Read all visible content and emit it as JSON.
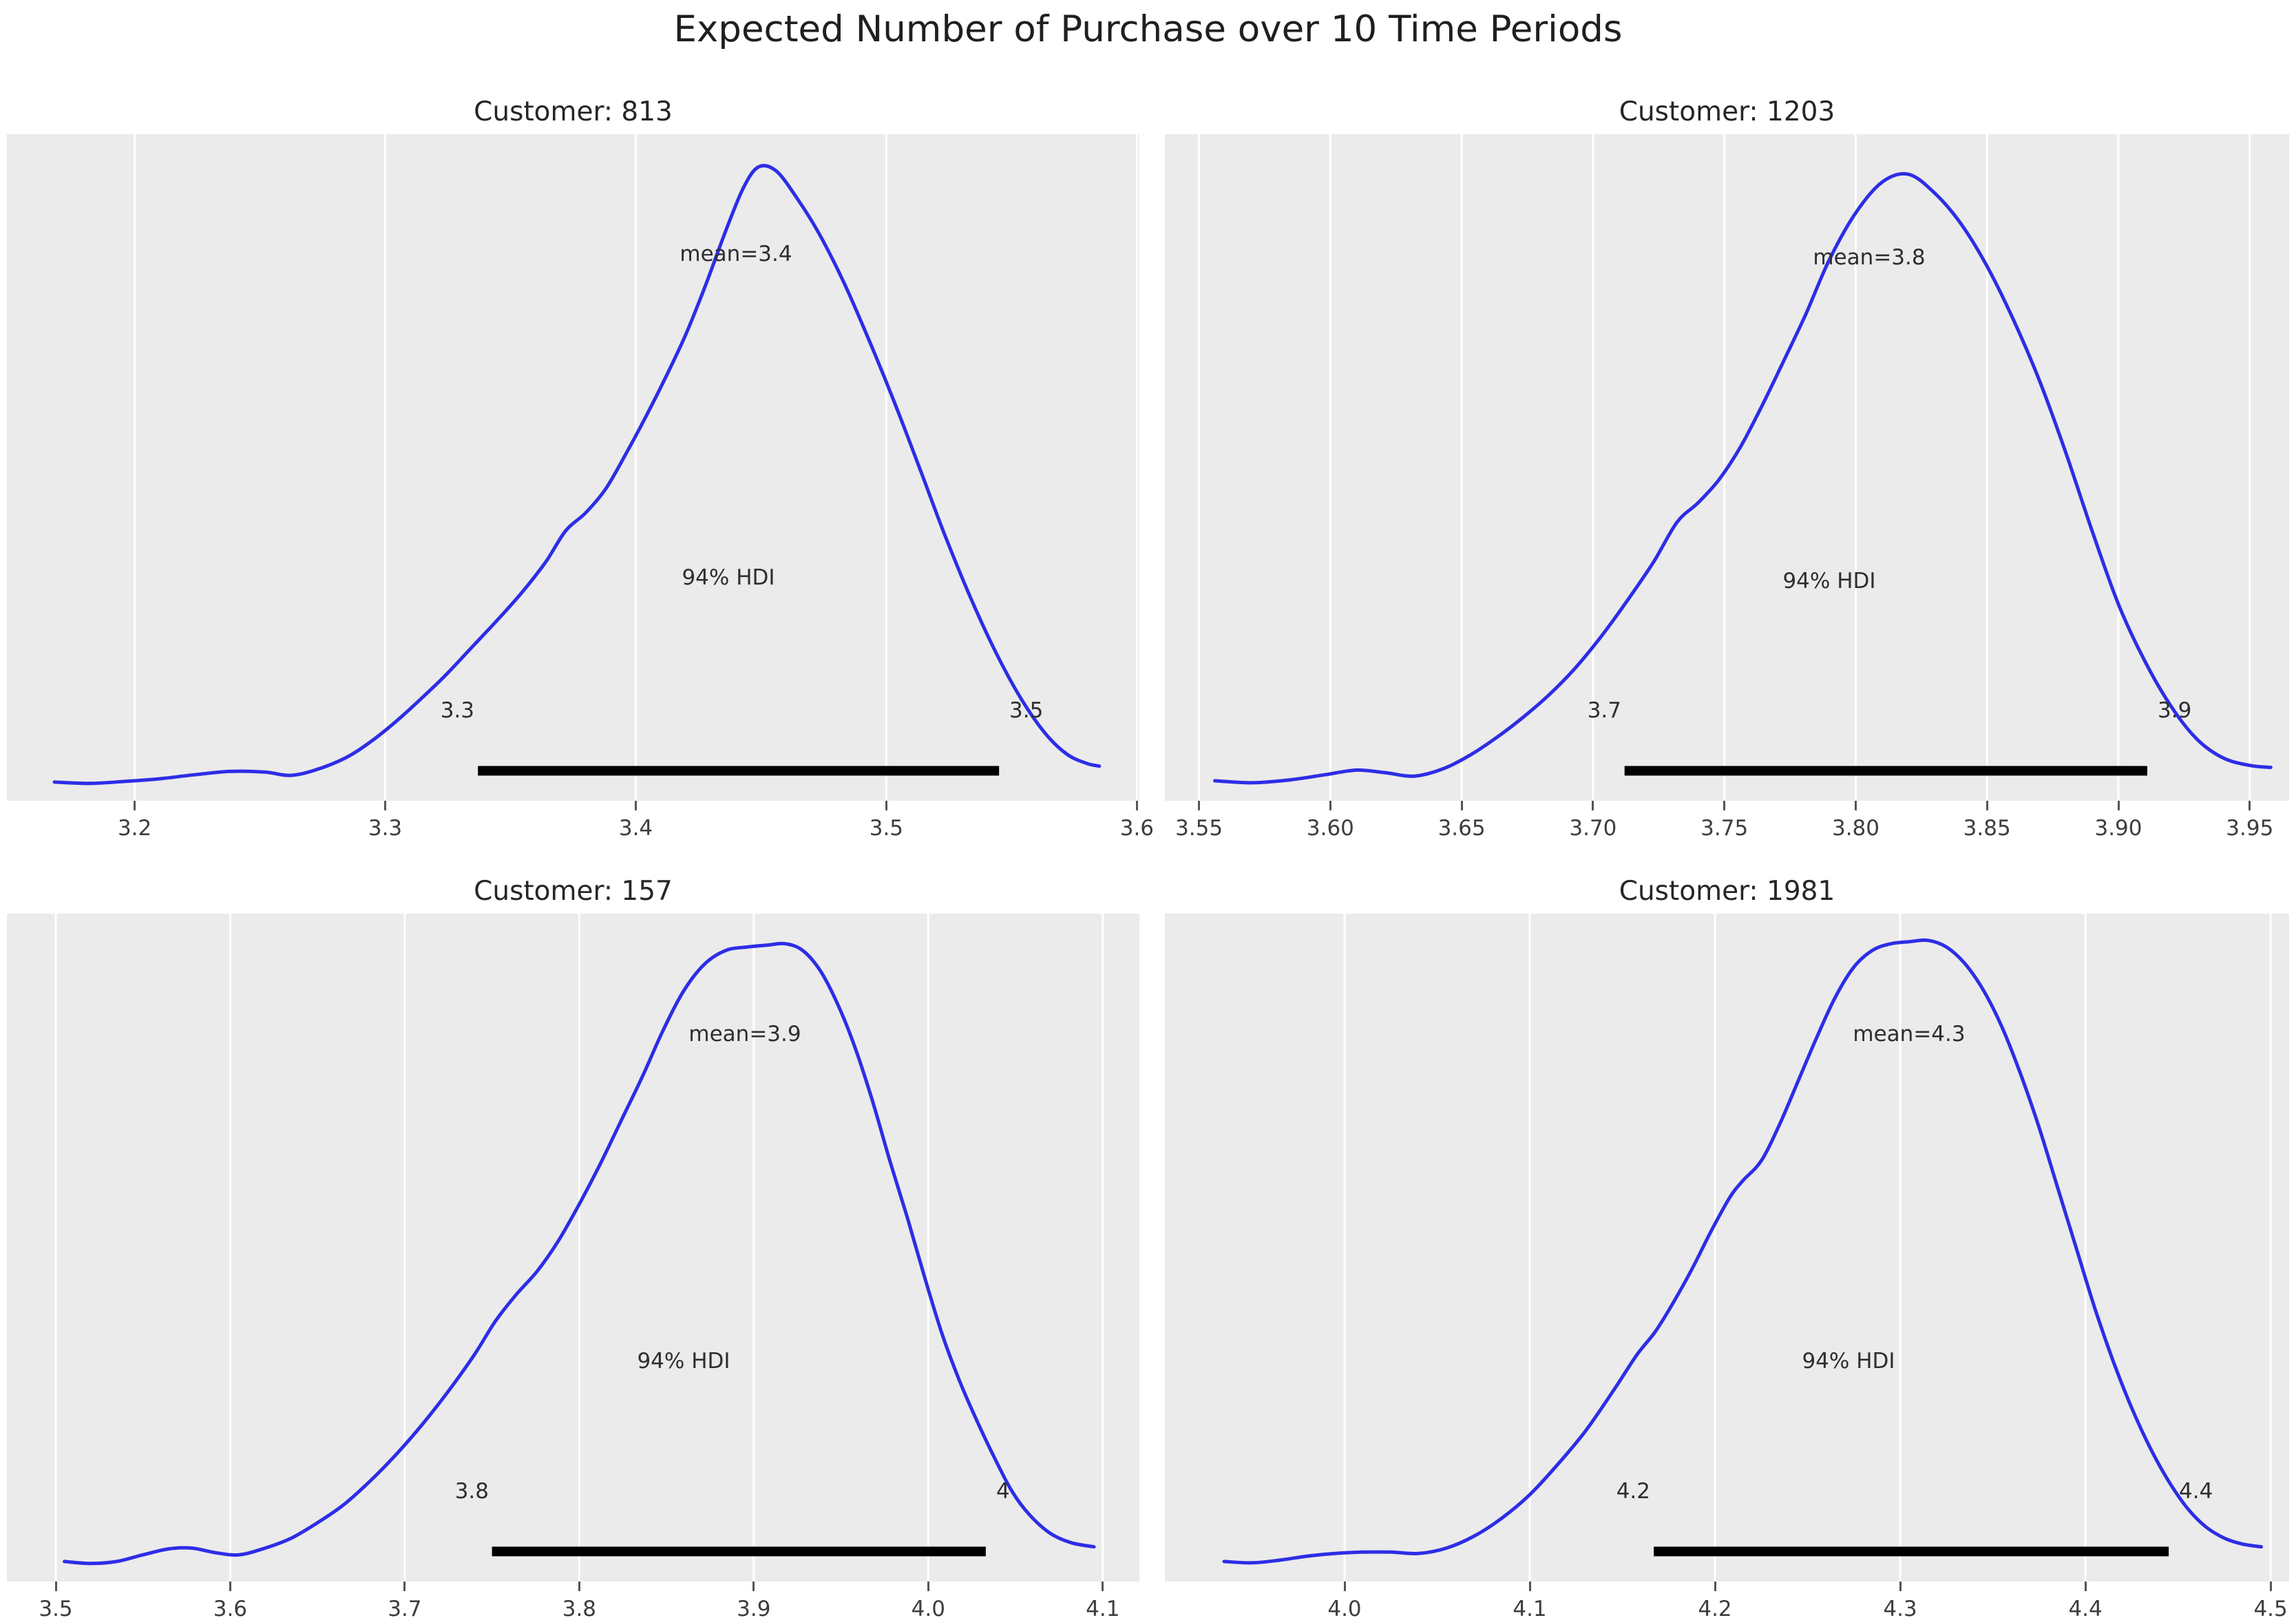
{
  "figure": {
    "title": "Expected Number of Purchase over 10 Time Periods"
  },
  "style": {
    "panel_bg": "#ebebeb",
    "grid_color": "#ffffff",
    "curve_color": "#2d2de6",
    "hdi_line_color": "#000000",
    "title_color": "#262626",
    "tick_color": "#3d3d3d"
  },
  "chart_data": [
    {
      "type": "kde",
      "title": "Customer: 813",
      "mean": 3.4,
      "mean_label": "mean=3.4",
      "hdi_text": "94% HDI",
      "hdi_interval": [
        3.337,
        3.545
      ],
      "hdi_labels": [
        "3.3",
        "3.5"
      ],
      "xlim": [
        3.149,
        3.601
      ],
      "ticks": [
        3.2,
        3.3,
        3.4,
        3.5,
        3.6
      ],
      "tick_labels": [
        "3.2",
        "3.3",
        "3.4",
        "3.5",
        "3.6"
      ],
      "mean_label_pos": [
        3.44,
        0.82
      ],
      "hdi_text_pos": [
        3.437,
        0.335
      ],
      "hdi_label_y": 0.135,
      "hdi_line_y": 0.045,
      "curve": [
        [
          3.168,
          0.028
        ],
        [
          3.182,
          0.026
        ],
        [
          3.196,
          0.029
        ],
        [
          3.21,
          0.033
        ],
        [
          3.224,
          0.039
        ],
        [
          3.238,
          0.044
        ],
        [
          3.252,
          0.043
        ],
        [
          3.262,
          0.038
        ],
        [
          3.272,
          0.046
        ],
        [
          3.284,
          0.064
        ],
        [
          3.294,
          0.088
        ],
        [
          3.304,
          0.118
        ],
        [
          3.314,
          0.152
        ],
        [
          3.324,
          0.188
        ],
        [
          3.334,
          0.228
        ],
        [
          3.344,
          0.268
        ],
        [
          3.354,
          0.31
        ],
        [
          3.364,
          0.358
        ],
        [
          3.372,
          0.405
        ],
        [
          3.38,
          0.432
        ],
        [
          3.388,
          0.468
        ],
        [
          3.396,
          0.52
        ],
        [
          3.404,
          0.576
        ],
        [
          3.412,
          0.636
        ],
        [
          3.42,
          0.7
        ],
        [
          3.428,
          0.775
        ],
        [
          3.436,
          0.856
        ],
        [
          3.443,
          0.92
        ],
        [
          3.449,
          0.951
        ],
        [
          3.456,
          0.945
        ],
        [
          3.464,
          0.906
        ],
        [
          3.473,
          0.852
        ],
        [
          3.483,
          0.778
        ],
        [
          3.493,
          0.692
        ],
        [
          3.503,
          0.6
        ],
        [
          3.513,
          0.502
        ],
        [
          3.523,
          0.402
        ],
        [
          3.533,
          0.31
        ],
        [
          3.543,
          0.228
        ],
        [
          3.553,
          0.158
        ],
        [
          3.563,
          0.103
        ],
        [
          3.572,
          0.07
        ],
        [
          3.58,
          0.056
        ],
        [
          3.585,
          0.052
        ]
      ]
    },
    {
      "type": "kde",
      "title": "Customer: 1203",
      "mean": 3.8,
      "mean_label": "mean=3.8",
      "hdi_text": "94% HDI",
      "hdi_interval": [
        3.712,
        3.911
      ],
      "hdi_labels": [
        "3.7",
        "3.9"
      ],
      "xlim": [
        3.537,
        3.965
      ],
      "ticks": [
        3.55,
        3.6,
        3.65,
        3.7,
        3.75,
        3.8,
        3.85,
        3.9,
        3.95
      ],
      "tick_labels": [
        "3.55",
        "3.60",
        "3.65",
        "3.70",
        "3.75",
        "3.80",
        "3.85",
        "3.90",
        "3.95"
      ],
      "mean_label_pos": [
        3.805,
        0.815
      ],
      "hdi_text_pos": [
        3.79,
        0.33
      ],
      "hdi_label_y": 0.135,
      "hdi_line_y": 0.045,
      "curve": [
        [
          3.556,
          0.03
        ],
        [
          3.57,
          0.027
        ],
        [
          3.584,
          0.031
        ],
        [
          3.598,
          0.039
        ],
        [
          3.61,
          0.046
        ],
        [
          3.621,
          0.042
        ],
        [
          3.632,
          0.037
        ],
        [
          3.643,
          0.048
        ],
        [
          3.653,
          0.068
        ],
        [
          3.663,
          0.094
        ],
        [
          3.673,
          0.124
        ],
        [
          3.683,
          0.158
        ],
        [
          3.693,
          0.198
        ],
        [
          3.703,
          0.246
        ],
        [
          3.713,
          0.3
        ],
        [
          3.723,
          0.358
        ],
        [
          3.732,
          0.418
        ],
        [
          3.74,
          0.447
        ],
        [
          3.748,
          0.482
        ],
        [
          3.756,
          0.53
        ],
        [
          3.764,
          0.59
        ],
        [
          3.772,
          0.655
        ],
        [
          3.781,
          0.73
        ],
        [
          3.79,
          0.812
        ],
        [
          3.8,
          0.882
        ],
        [
          3.81,
          0.928
        ],
        [
          3.82,
          0.94
        ],
        [
          3.83,
          0.912
        ],
        [
          3.84,
          0.866
        ],
        [
          3.85,
          0.802
        ],
        [
          3.86,
          0.722
        ],
        [
          3.87,
          0.63
        ],
        [
          3.88,
          0.522
        ],
        [
          3.89,
          0.405
        ],
        [
          3.9,
          0.295
        ],
        [
          3.91,
          0.21
        ],
        [
          3.92,
          0.142
        ],
        [
          3.93,
          0.092
        ],
        [
          3.94,
          0.064
        ],
        [
          3.95,
          0.053
        ],
        [
          3.958,
          0.05
        ]
      ]
    },
    {
      "type": "kde",
      "title": "Customer: 157",
      "mean": 3.9,
      "mean_label": "mean=3.9",
      "hdi_text": "94% HDI",
      "hdi_interval": [
        3.75,
        4.033
      ],
      "hdi_labels": [
        "3.8",
        "4"
      ],
      "xlim": [
        3.472,
        4.121
      ],
      "ticks": [
        3.5,
        3.6,
        3.7,
        3.8,
        3.9,
        4.0,
        4.1
      ],
      "tick_labels": [
        "3.5",
        "3.6",
        "3.7",
        "3.8",
        "3.9",
        "4.0",
        "4.1"
      ],
      "mean_label_pos": [
        3.895,
        0.82
      ],
      "hdi_text_pos": [
        3.86,
        0.33
      ],
      "hdi_label_y": 0.135,
      "hdi_line_y": 0.045,
      "curve": [
        [
          3.505,
          0.03
        ],
        [
          3.52,
          0.027
        ],
        [
          3.535,
          0.03
        ],
        [
          3.55,
          0.04
        ],
        [
          3.565,
          0.049
        ],
        [
          3.578,
          0.05
        ],
        [
          3.592,
          0.043
        ],
        [
          3.605,
          0.04
        ],
        [
          3.62,
          0.05
        ],
        [
          3.635,
          0.065
        ],
        [
          3.65,
          0.088
        ],
        [
          3.665,
          0.115
        ],
        [
          3.68,
          0.15
        ],
        [
          3.695,
          0.19
        ],
        [
          3.71,
          0.235
        ],
        [
          3.725,
          0.285
        ],
        [
          3.74,
          0.34
        ],
        [
          3.752,
          0.39
        ],
        [
          3.764,
          0.43
        ],
        [
          3.776,
          0.465
        ],
        [
          3.788,
          0.51
        ],
        [
          3.8,
          0.565
        ],
        [
          3.812,
          0.625
        ],
        [
          3.824,
          0.69
        ],
        [
          3.836,
          0.755
        ],
        [
          3.848,
          0.825
        ],
        [
          3.86,
          0.885
        ],
        [
          3.872,
          0.925
        ],
        [
          3.884,
          0.945
        ],
        [
          3.896,
          0.95
        ],
        [
          3.908,
          0.953
        ],
        [
          3.918,
          0.955
        ],
        [
          3.928,
          0.945
        ],
        [
          3.938,
          0.915
        ],
        [
          3.948,
          0.865
        ],
        [
          3.958,
          0.8
        ],
        [
          3.968,
          0.72
        ],
        [
          3.978,
          0.63
        ],
        [
          3.988,
          0.545
        ],
        [
          3.998,
          0.455
        ],
        [
          4.008,
          0.37
        ],
        [
          4.018,
          0.3
        ],
        [
          4.028,
          0.24
        ],
        [
          4.038,
          0.185
        ],
        [
          4.048,
          0.135
        ],
        [
          4.058,
          0.1
        ],
        [
          4.07,
          0.072
        ],
        [
          4.082,
          0.058
        ],
        [
          4.095,
          0.052
        ]
      ]
    },
    {
      "type": "kde",
      "title": "Customer: 1981",
      "mean": 4.3,
      "mean_label": "mean=4.3",
      "hdi_text": "94% HDI",
      "hdi_interval": [
        4.167,
        4.445
      ],
      "hdi_labels": [
        "4.2",
        "4.4"
      ],
      "xlim": [
        3.903,
        4.51
      ],
      "ticks": [
        4.0,
        4.1,
        4.2,
        4.3,
        4.4,
        4.5
      ],
      "tick_labels": [
        "4.0",
        "4.1",
        "4.2",
        "4.3",
        "4.4",
        "4.5"
      ],
      "mean_label_pos": [
        4.305,
        0.82
      ],
      "hdi_text_pos": [
        4.272,
        0.33
      ],
      "hdi_label_y": 0.135,
      "hdi_line_y": 0.045,
      "curve": [
        [
          3.935,
          0.03
        ],
        [
          3.95,
          0.028
        ],
        [
          3.965,
          0.032
        ],
        [
          3.98,
          0.038
        ],
        [
          3.995,
          0.042
        ],
        [
          4.01,
          0.044
        ],
        [
          4.025,
          0.044
        ],
        [
          4.04,
          0.042
        ],
        [
          4.055,
          0.05
        ],
        [
          4.07,
          0.068
        ],
        [
          4.085,
          0.095
        ],
        [
          4.1,
          0.13
        ],
        [
          4.115,
          0.175
        ],
        [
          4.13,
          0.225
        ],
        [
          4.145,
          0.285
        ],
        [
          4.158,
          0.34
        ],
        [
          4.168,
          0.375
        ],
        [
          4.178,
          0.42
        ],
        [
          4.188,
          0.47
        ],
        [
          4.198,
          0.525
        ],
        [
          4.208,
          0.575
        ],
        [
          4.215,
          0.6
        ],
        [
          4.225,
          0.63
        ],
        [
          4.235,
          0.685
        ],
        [
          4.245,
          0.75
        ],
        [
          4.255,
          0.815
        ],
        [
          4.265,
          0.875
        ],
        [
          4.275,
          0.92
        ],
        [
          4.285,
          0.945
        ],
        [
          4.295,
          0.955
        ],
        [
          4.305,
          0.958
        ],
        [
          4.315,
          0.96
        ],
        [
          4.325,
          0.95
        ],
        [
          4.335,
          0.925
        ],
        [
          4.345,
          0.885
        ],
        [
          4.355,
          0.83
        ],
        [
          4.365,
          0.76
        ],
        [
          4.375,
          0.68
        ],
        [
          4.385,
          0.59
        ],
        [
          4.395,
          0.5
        ],
        [
          4.405,
          0.41
        ],
        [
          4.415,
          0.33
        ],
        [
          4.425,
          0.26
        ],
        [
          4.435,
          0.2
        ],
        [
          4.445,
          0.15
        ],
        [
          4.455,
          0.11
        ],
        [
          4.465,
          0.082
        ],
        [
          4.475,
          0.065
        ],
        [
          4.485,
          0.056
        ],
        [
          4.495,
          0.052
        ]
      ]
    }
  ]
}
